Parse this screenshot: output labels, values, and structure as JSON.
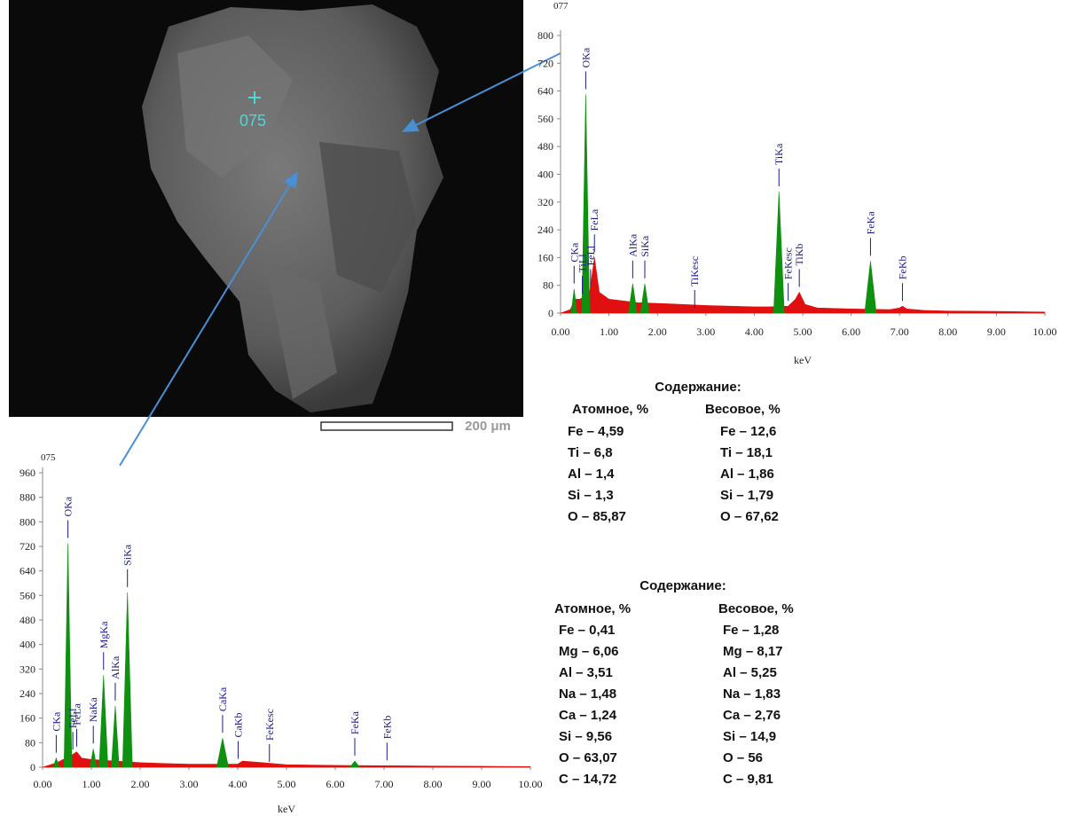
{
  "image": {
    "marker_label": "075",
    "scale_label": "200 μm"
  },
  "chart_data": [
    {
      "type": "spectrum",
      "title": "077",
      "xlabel": "keV",
      "xlim": [
        0,
        10
      ],
      "ylim": [
        0,
        800
      ],
      "xticks": [
        {
          "value": 0,
          "label": "0.00"
        },
        {
          "value": 1,
          "label": "1.00"
        },
        {
          "value": 2,
          "label": "2.00"
        },
        {
          "value": 3,
          "label": "3.00"
        },
        {
          "value": 4,
          "label": "4.00"
        },
        {
          "value": 5,
          "label": "5.00"
        },
        {
          "value": 6,
          "label": "6.00"
        },
        {
          "value": 7,
          "label": "7.00"
        },
        {
          "value": 8,
          "label": "8.00"
        },
        {
          "value": 9,
          "label": "9.00"
        },
        {
          "value": 10,
          "label": "10.00"
        }
      ],
      "yticks": [
        0,
        80,
        160,
        240,
        320,
        400,
        480,
        560,
        640,
        720,
        800
      ],
      "series": [
        {
          "color": "#e01010",
          "x": [
            0,
            0.2,
            0.3,
            0.4,
            0.6,
            0.7,
            0.8,
            1.0,
            1.3,
            1.6,
            2.0,
            2.5,
            3.0,
            3.5,
            4.0,
            4.3,
            4.7,
            4.85,
            4.93,
            5.05,
            5.3,
            6.0,
            6.8,
            7.0,
            7.06,
            7.15,
            7.5,
            8,
            9,
            10
          ],
          "values": [
            0,
            10,
            40,
            40,
            60,
            160,
            60,
            40,
            35,
            30,
            28,
            25,
            22,
            20,
            18,
            18,
            20,
            40,
            60,
            25,
            15,
            12,
            10,
            15,
            20,
            12,
            8,
            6,
            5,
            3
          ]
        },
        {
          "color": "#109010",
          "x": [
            0.22,
            0.28,
            0.34,
            null,
            0.44,
            0.52,
            0.6,
            null,
            1.4,
            1.49,
            1.58,
            null,
            1.65,
            1.74,
            1.83,
            null,
            4.4,
            4.51,
            4.62,
            null,
            6.28,
            6.4,
            6.52
          ],
          "values": [
            0,
            70,
            0,
            null,
            0,
            630,
            0,
            null,
            0,
            85,
            0,
            null,
            0,
            85,
            0,
            null,
            0,
            350,
            0,
            null,
            0,
            150,
            0
          ]
        }
      ],
      "annotations": [
        {
          "text": "CKa",
          "x": 0.28
        },
        {
          "text": "TiLl",
          "x": 0.45
        },
        {
          "text": "OKa",
          "x": 0.52
        },
        {
          "text": "FeLl",
          "x": 0.62
        },
        {
          "text": "FeLa",
          "x": 0.7
        },
        {
          "text": "AlKa",
          "x": 1.49
        },
        {
          "text": "SiKa",
          "x": 1.74
        },
        {
          "text": "TiKesc",
          "x": 2.77
        },
        {
          "text": "TiKa",
          "x": 4.51
        },
        {
          "text": "FeKesc",
          "x": 4.7
        },
        {
          "text": "TiKb",
          "x": 4.93
        },
        {
          "text": "FeKa",
          "x": 6.4
        },
        {
          "text": "FeKb",
          "x": 7.06
        }
      ]
    },
    {
      "type": "spectrum",
      "title": "075",
      "xlabel": "keV",
      "xlim": [
        0,
        10
      ],
      "ylim": [
        0,
        960
      ],
      "xticks": [
        {
          "value": 0,
          "label": "0.00"
        },
        {
          "value": 1,
          "label": "1.00"
        },
        {
          "value": 2,
          "label": "2.00"
        },
        {
          "value": 3,
          "label": "3.00"
        },
        {
          "value": 4,
          "label": "4.00"
        },
        {
          "value": 5,
          "label": "5.00"
        },
        {
          "value": 6,
          "label": "6.00"
        },
        {
          "value": 7,
          "label": "7.00"
        },
        {
          "value": 8,
          "label": "8.00"
        },
        {
          "value": 9,
          "label": "9.00"
        },
        {
          "value": 10,
          "label": "10.00"
        }
      ],
      "yticks": [
        0,
        80,
        160,
        240,
        320,
        400,
        480,
        560,
        640,
        720,
        800,
        880,
        960
      ],
      "series": [
        {
          "color": "#e01010",
          "x": [
            0,
            0.3,
            0.6,
            0.7,
            0.8,
            1.0,
            1.5,
            2.0,
            2.5,
            3,
            3.5,
            4.0,
            4.1,
            4.5,
            5,
            6,
            7,
            8,
            9,
            10
          ],
          "values": [
            0,
            15,
            40,
            50,
            30,
            25,
            20,
            15,
            12,
            10,
            10,
            10,
            20,
            15,
            8,
            6,
            5,
            4,
            3,
            2
          ]
        },
        {
          "color": "#109010",
          "x": [
            0.22,
            0.28,
            0.34,
            null,
            0.44,
            0.52,
            0.6,
            null,
            0.97,
            1.04,
            1.11,
            null,
            1.16,
            1.25,
            1.34,
            null,
            1.41,
            1.49,
            1.57,
            null,
            1.64,
            1.74,
            1.84,
            null,
            3.57,
            3.69,
            3.81,
            null,
            6.3,
            6.4,
            6.5
          ],
          "values": [
            0,
            30,
            0,
            null,
            0,
            730,
            0,
            null,
            0,
            60,
            0,
            null,
            0,
            300,
            0,
            null,
            0,
            200,
            0,
            null,
            0,
            570,
            0,
            null,
            0,
            95,
            0,
            null,
            0,
            20,
            0
          ]
        }
      ],
      "annotations": [
        {
          "text": "CKa",
          "x": 0.28
        },
        {
          "text": "OKa",
          "x": 0.52
        },
        {
          "text": "FeLl",
          "x": 0.62
        },
        {
          "text": "FeLa",
          "x": 0.7
        },
        {
          "text": "NaKa",
          "x": 1.04
        },
        {
          "text": "MgKa",
          "x": 1.25
        },
        {
          "text": "AlKa",
          "x": 1.49
        },
        {
          "text": "SiKa",
          "x": 1.74
        },
        {
          "text": "CaKa",
          "x": 3.69
        },
        {
          "text": "CaKb",
          "x": 4.01
        },
        {
          "text": "FeKesc",
          "x": 4.65
        },
        {
          "text": "FeKa",
          "x": 6.4
        },
        {
          "text": "FeKb",
          "x": 7.06
        }
      ]
    }
  ],
  "composition": [
    {
      "heading": "Содержание:",
      "columns": [
        "Атомное, %",
        "Весовое, %"
      ],
      "rows": [
        [
          "Fe – 4,59",
          "Fe – 12,6"
        ],
        [
          "Ti – 6,8",
          "Ti – 18,1"
        ],
        [
          "Al – 1,4",
          "Al – 1,86"
        ],
        [
          "Si – 1,3",
          "Si – 1,79"
        ],
        [
          "O – 85,87",
          "O – 67,62"
        ]
      ]
    },
    {
      "heading": "Содержание:",
      "columns": [
        "Атомное, %",
        "Весовое, %"
      ],
      "rows": [
        [
          "Fe – 0,41",
          "Fe – 1,28"
        ],
        [
          "Mg – 6,06",
          "Mg – 8,17"
        ],
        [
          "Al – 3,51",
          "Al – 5,25"
        ],
        [
          "Na – 1,48",
          "Na – 1,83"
        ],
        [
          "Ca – 1,24",
          "Ca – 2,76"
        ],
        [
          "Si – 9,56",
          "Si – 14,9"
        ],
        [
          "O – 63,07",
          "O – 56"
        ],
        [
          "C – 14,72",
          "C – 9,81"
        ]
      ]
    }
  ]
}
